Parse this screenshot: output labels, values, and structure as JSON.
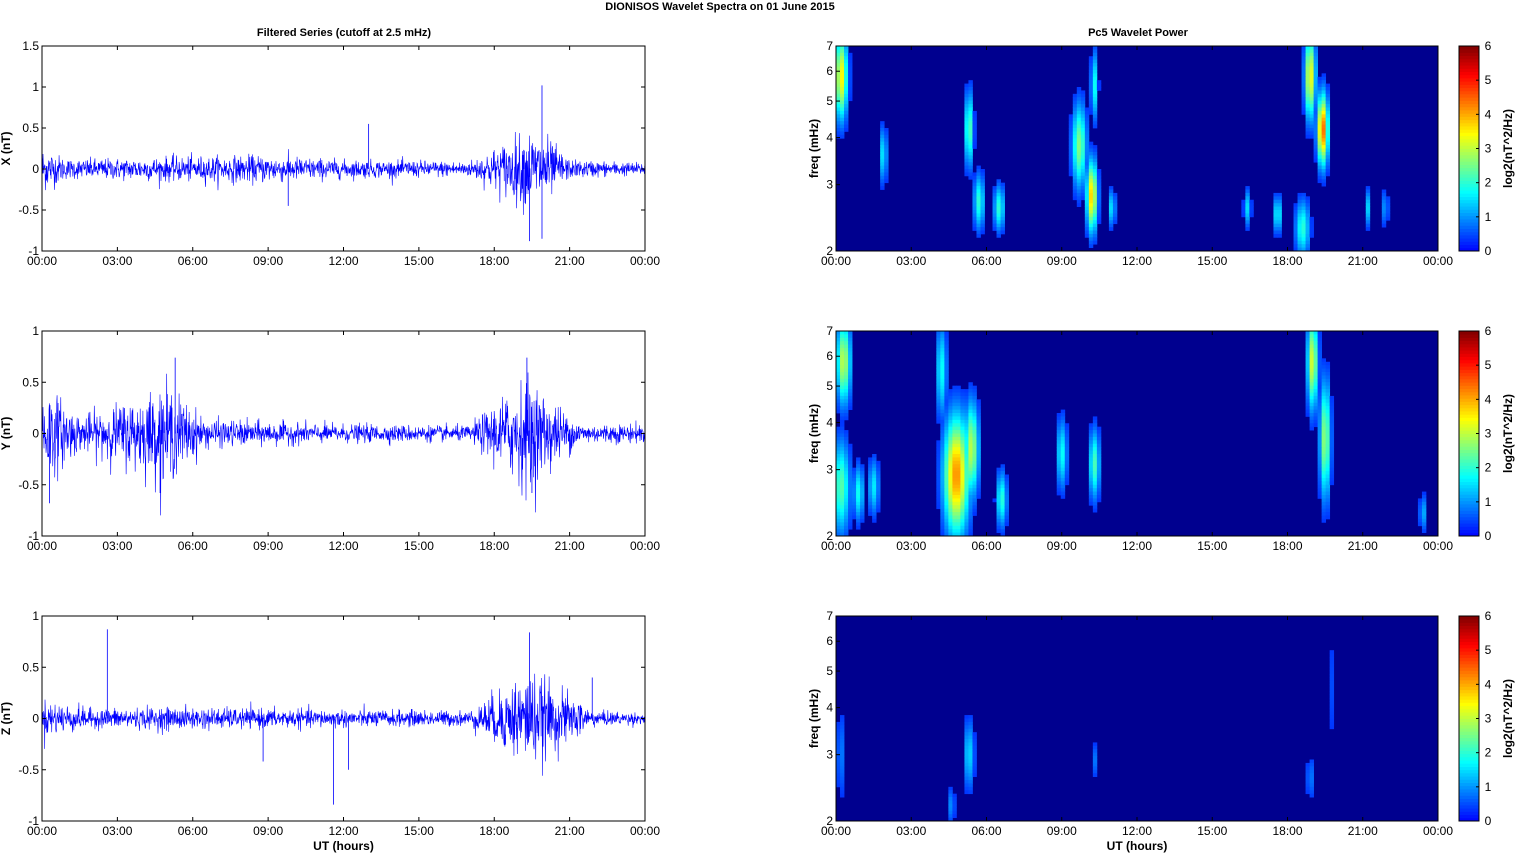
{
  "figure": {
    "title": "DIONISOS Wavelet Spectra on 01 June      2015",
    "left_title": "Filtered Series (cutoff at 2.5 mHz)",
    "right_title": "Pc5 Wavelet Power"
  },
  "colors": {
    "series": "#0000ff",
    "spectrogram_background": "#00008f",
    "frame": "#000000"
  },
  "chart_data": [
    {
      "type": "line",
      "ylabel": "X (nT)",
      "xlabel": "",
      "xlim": [
        0,
        24
      ],
      "ylim": [
        -1,
        1.5
      ],
      "x_ticks": [
        "00:00",
        "03:00",
        "06:00",
        "09:00",
        "12:00",
        "15:00",
        "18:00",
        "21:00",
        "00:00"
      ],
      "y_ticks": [
        "-1",
        "-0.5",
        "0",
        "0.5",
        "1",
        "1.5"
      ],
      "y_tick_values": [
        -1,
        -0.5,
        0,
        0.5,
        1,
        1.5
      ],
      "series_color": "#0000ff",
      "noise_envelope": [
        {
          "x": 0,
          "amp": 0.3
        },
        {
          "x": 1,
          "amp": 0.13
        },
        {
          "x": 3,
          "amp": 0.14
        },
        {
          "x": 5,
          "amp": 0.16
        },
        {
          "x": 9,
          "amp": 0.18
        },
        {
          "x": 12,
          "amp": 0.12
        },
        {
          "x": 17,
          "amp": 0.1
        },
        {
          "x": 19.3,
          "amp": 0.5
        },
        {
          "x": 20,
          "amp": 0.45
        },
        {
          "x": 21,
          "amp": 0.12
        },
        {
          "x": 24,
          "amp": 0.08
        }
      ],
      "spikes": [
        {
          "x": 13.0,
          "y": 0.55
        },
        {
          "x": 14.6,
          "y": 0.08
        },
        {
          "x": 19.9,
          "y": 1.02
        },
        {
          "x": 19.4,
          "y": -0.88
        },
        {
          "x": 9.8,
          "y": -0.45
        },
        {
          "x": 19.9,
          "y": -0.85
        }
      ]
    },
    {
      "type": "line",
      "ylabel": "Y (nT)",
      "xlabel": "",
      "xlim": [
        0,
        24
      ],
      "ylim": [
        -1,
        1
      ],
      "x_ticks": [
        "00:00",
        "03:00",
        "06:00",
        "09:00",
        "12:00",
        "15:00",
        "18:00",
        "21:00",
        "00:00"
      ],
      "y_ticks": [
        "-1",
        "-0.5",
        "0",
        "0.5",
        "1"
      ],
      "y_tick_values": [
        -1,
        -0.5,
        0,
        0.5,
        1
      ],
      "series_color": "#0000ff",
      "noise_envelope": [
        {
          "x": 0,
          "amp": 0.55
        },
        {
          "x": 1.5,
          "amp": 0.18
        },
        {
          "x": 3.5,
          "amp": 0.35
        },
        {
          "x": 5,
          "amp": 0.5
        },
        {
          "x": 6.5,
          "amp": 0.15
        },
        {
          "x": 11,
          "amp": 0.1
        },
        {
          "x": 17,
          "amp": 0.08
        },
        {
          "x": 19.3,
          "amp": 0.6
        },
        {
          "x": 20.5,
          "amp": 0.3
        },
        {
          "x": 21.5,
          "amp": 0.1
        },
        {
          "x": 24,
          "amp": 0.1
        }
      ],
      "spikes": [
        {
          "x": 5.3,
          "y": 0.74
        },
        {
          "x": 0.3,
          "y": -0.68
        },
        {
          "x": 4.7,
          "y": -0.58
        },
        {
          "x": 19.3,
          "y": 0.74
        },
        {
          "x": 19.5,
          "y": -0.58
        }
      ]
    },
    {
      "type": "line",
      "ylabel": "Z (nT)",
      "xlabel": "UT (hours)",
      "xlim": [
        0,
        24
      ],
      "ylim": [
        -1,
        1
      ],
      "x_ticks": [
        "00:00",
        "03:00",
        "06:00",
        "09:00",
        "12:00",
        "15:00",
        "18:00",
        "21:00",
        "00:00"
      ],
      "y_ticks": [
        "-1",
        "-0.5",
        "0",
        "0.5",
        "1"
      ],
      "y_tick_values": [
        -1,
        -0.5,
        0,
        0.5,
        1
      ],
      "series_color": "#0000ff",
      "noise_envelope": [
        {
          "x": 0,
          "amp": 0.2
        },
        {
          "x": 2,
          "amp": 0.1
        },
        {
          "x": 5,
          "amp": 0.12
        },
        {
          "x": 9,
          "amp": 0.1
        },
        {
          "x": 17,
          "amp": 0.08
        },
        {
          "x": 19.3,
          "amp": 0.5
        },
        {
          "x": 21,
          "amp": 0.25
        },
        {
          "x": 22,
          "amp": 0.08
        },
        {
          "x": 24,
          "amp": 0.06
        }
      ],
      "spikes": [
        {
          "x": 2.6,
          "y": 0.87
        },
        {
          "x": 8.8,
          "y": -0.42
        },
        {
          "x": 11.6,
          "y": -0.84
        },
        {
          "x": 12.2,
          "y": -0.5
        },
        {
          "x": 19.4,
          "y": 0.84
        },
        {
          "x": 21.9,
          "y": 0.4
        }
      ]
    },
    {
      "type": "heatmap",
      "ylabel": "freq (mHz)",
      "xlabel": "",
      "colorbar_label": "log2(nT^2/Hz)",
      "xlim": [
        0,
        24
      ],
      "ylim": [
        2,
        7
      ],
      "y_scale": "log",
      "x_ticks": [
        "00:00",
        "03:00",
        "06:00",
        "09:00",
        "12:00",
        "15:00",
        "18:00",
        "21:00",
        "00:00"
      ],
      "y_ticks": [
        "2",
        "3",
        "4",
        "5",
        "6",
        "7"
      ],
      "y_tick_values": [
        2,
        3,
        4,
        5,
        6,
        7
      ],
      "clim": [
        0,
        6
      ],
      "colorbar_ticks": [
        "0",
        "1",
        "2",
        "3",
        "4",
        "5",
        "6"
      ],
      "blobs": [
        {
          "x": 0.2,
          "f": 5.8,
          "sx": 0.18,
          "sf": 0.18,
          "v": 3.5
        },
        {
          "x": 1.9,
          "f": 3.6,
          "sx": 0.08,
          "sf": 0.12,
          "v": 2.0
        },
        {
          "x": 5.3,
          "f": 4.2,
          "sx": 0.12,
          "sf": 0.16,
          "v": 2.4
        },
        {
          "x": 5.7,
          "f": 2.7,
          "sx": 0.15,
          "sf": 0.12,
          "v": 2.0
        },
        {
          "x": 6.5,
          "f": 2.6,
          "sx": 0.15,
          "sf": 0.1,
          "v": 2.0
        },
        {
          "x": 9.7,
          "f": 3.8,
          "sx": 0.2,
          "sf": 0.18,
          "v": 2.6
        },
        {
          "x": 10.2,
          "f": 2.8,
          "sx": 0.15,
          "sf": 0.15,
          "v": 3.8
        },
        {
          "x": 10.3,
          "f": 5.5,
          "sx": 0.1,
          "sf": 0.15,
          "v": 1.8
        },
        {
          "x": 11.0,
          "f": 2.6,
          "sx": 0.1,
          "sf": 0.08,
          "v": 1.6
        },
        {
          "x": 16.4,
          "f": 2.6,
          "sx": 0.1,
          "sf": 0.08,
          "v": 1.5
        },
        {
          "x": 17.6,
          "f": 2.5,
          "sx": 0.12,
          "sf": 0.08,
          "v": 1.8
        },
        {
          "x": 18.6,
          "f": 2.3,
          "sx": 0.2,
          "sf": 0.12,
          "v": 2.0
        },
        {
          "x": 18.9,
          "f": 5.8,
          "sx": 0.15,
          "sf": 0.18,
          "v": 3.5
        },
        {
          "x": 19.4,
          "f": 4.2,
          "sx": 0.15,
          "sf": 0.15,
          "v": 4.5
        },
        {
          "x": 21.2,
          "f": 2.6,
          "sx": 0.08,
          "sf": 0.08,
          "v": 1.4
        },
        {
          "x": 21.9,
          "f": 2.6,
          "sx": 0.08,
          "sf": 0.08,
          "v": 1.2
        }
      ]
    },
    {
      "type": "heatmap",
      "ylabel": "freq (mHz)",
      "xlabel": "",
      "colorbar_label": "log2(nT^2/Hz)",
      "xlim": [
        0,
        24
      ],
      "ylim": [
        2,
        7
      ],
      "y_scale": "log",
      "x_ticks": [
        "00:00",
        "03:00",
        "06:00",
        "09:00",
        "12:00",
        "15:00",
        "18:00",
        "21:00",
        "00:00"
      ],
      "y_ticks": [
        "2",
        "3",
        "4",
        "5",
        "6",
        "7"
      ],
      "y_tick_values": [
        2,
        3,
        4,
        5,
        6,
        7
      ],
      "clim": [
        0,
        6
      ],
      "colorbar_ticks": [
        "0",
        "1",
        "2",
        "3",
        "4",
        "5",
        "6"
      ],
      "blobs": [
        {
          "x": 0.3,
          "f": 5.8,
          "sx": 0.2,
          "sf": 0.18,
          "v": 3.0
        },
        {
          "x": 0.2,
          "f": 2.7,
          "sx": 0.25,
          "sf": 0.2,
          "v": 2.3
        },
        {
          "x": 0.9,
          "f": 2.6,
          "sx": 0.15,
          "sf": 0.12,
          "v": 1.8
        },
        {
          "x": 1.5,
          "f": 2.7,
          "sx": 0.15,
          "sf": 0.12,
          "v": 1.6
        },
        {
          "x": 4.2,
          "f": 5.5,
          "sx": 0.15,
          "sf": 0.2,
          "v": 1.8
        },
        {
          "x": 4.8,
          "f": 2.9,
          "sx": 0.35,
          "sf": 0.25,
          "v": 4.2
        },
        {
          "x": 5.4,
          "f": 3.4,
          "sx": 0.2,
          "sf": 0.2,
          "v": 3.0
        },
        {
          "x": 6.6,
          "f": 2.5,
          "sx": 0.15,
          "sf": 0.12,
          "v": 2.0
        },
        {
          "x": 9.0,
          "f": 3.3,
          "sx": 0.15,
          "sf": 0.15,
          "v": 1.8
        },
        {
          "x": 10.3,
          "f": 3.1,
          "sx": 0.15,
          "sf": 0.15,
          "v": 2.2
        },
        {
          "x": 19.0,
          "f": 5.8,
          "sx": 0.15,
          "sf": 0.2,
          "v": 3.2
        },
        {
          "x": 19.5,
          "f": 3.6,
          "sx": 0.15,
          "sf": 0.25,
          "v": 2.8
        },
        {
          "x": 23.4,
          "f": 2.3,
          "sx": 0.1,
          "sf": 0.08,
          "v": 1.2
        }
      ]
    },
    {
      "type": "heatmap",
      "ylabel": "freq (mHz)",
      "xlabel": "UT (hours)",
      "colorbar_label": "log2(nT^2/Hz)",
      "xlim": [
        0,
        24
      ],
      "ylim": [
        2,
        7
      ],
      "y_scale": "log",
      "x_ticks": [
        "00:00",
        "03:00",
        "06:00",
        "09:00",
        "12:00",
        "15:00",
        "18:00",
        "21:00",
        "00:00"
      ],
      "y_ticks": [
        "2",
        "3",
        "4",
        "5",
        "6",
        "7"
      ],
      "y_tick_values": [
        2,
        3,
        4,
        5,
        6,
        7
      ],
      "clim": [
        0,
        6
      ],
      "colorbar_ticks": [
        "0",
        "1",
        "2",
        "3",
        "4",
        "5",
        "6"
      ],
      "blobs": [
        {
          "x": 0.2,
          "f": 3.0,
          "sx": 0.15,
          "sf": 0.2,
          "v": 0.8
        },
        {
          "x": 5.3,
          "f": 3.0,
          "sx": 0.15,
          "sf": 0.15,
          "v": 1.5
        },
        {
          "x": 4.6,
          "f": 2.2,
          "sx": 0.1,
          "sf": 0.08,
          "v": 1.0
        },
        {
          "x": 10.3,
          "f": 2.9,
          "sx": 0.08,
          "sf": 0.08,
          "v": 0.8
        },
        {
          "x": 18.9,
          "f": 2.6,
          "sx": 0.1,
          "sf": 0.1,
          "v": 0.9
        },
        {
          "x": 19.7,
          "f": 4.5,
          "sx": 0.06,
          "sf": 0.3,
          "v": 0.8
        }
      ]
    }
  ]
}
